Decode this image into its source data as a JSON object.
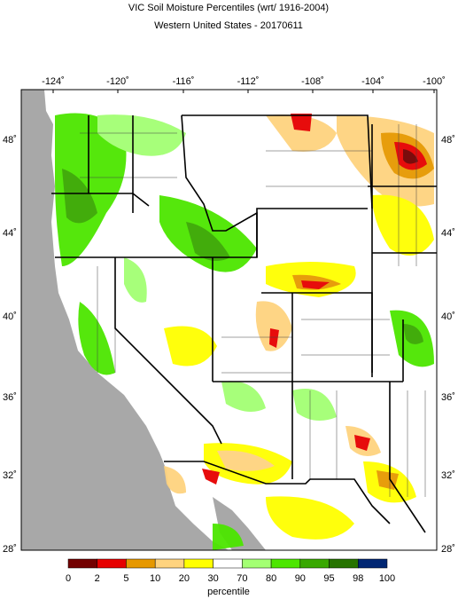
{
  "title": "VIC Soil Moisture Percentiles (wrt/ 1916-2004)",
  "subtitle": "Western United States - 20170611",
  "longitude_labels": [
    "-124˚",
    "-120˚",
    "-116˚",
    "-112˚",
    "-108˚",
    "-104˚",
    "-100˚"
  ],
  "latitude_labels": [
    "48˚",
    "44˚",
    "40˚",
    "36˚",
    "32˚",
    "28˚"
  ],
  "colorbar": {
    "ticks": [
      0,
      2,
      5,
      10,
      20,
      30,
      70,
      80,
      90,
      95,
      98,
      100
    ],
    "colors": [
      "#730000",
      "#e60000",
      "#e69800",
      "#fed37f",
      "#ffff00",
      "#ffffff",
      "#a3ff73",
      "#4ce600",
      "#38a800",
      "#267300",
      "#002673"
    ],
    "label": "percentile"
  }
}
